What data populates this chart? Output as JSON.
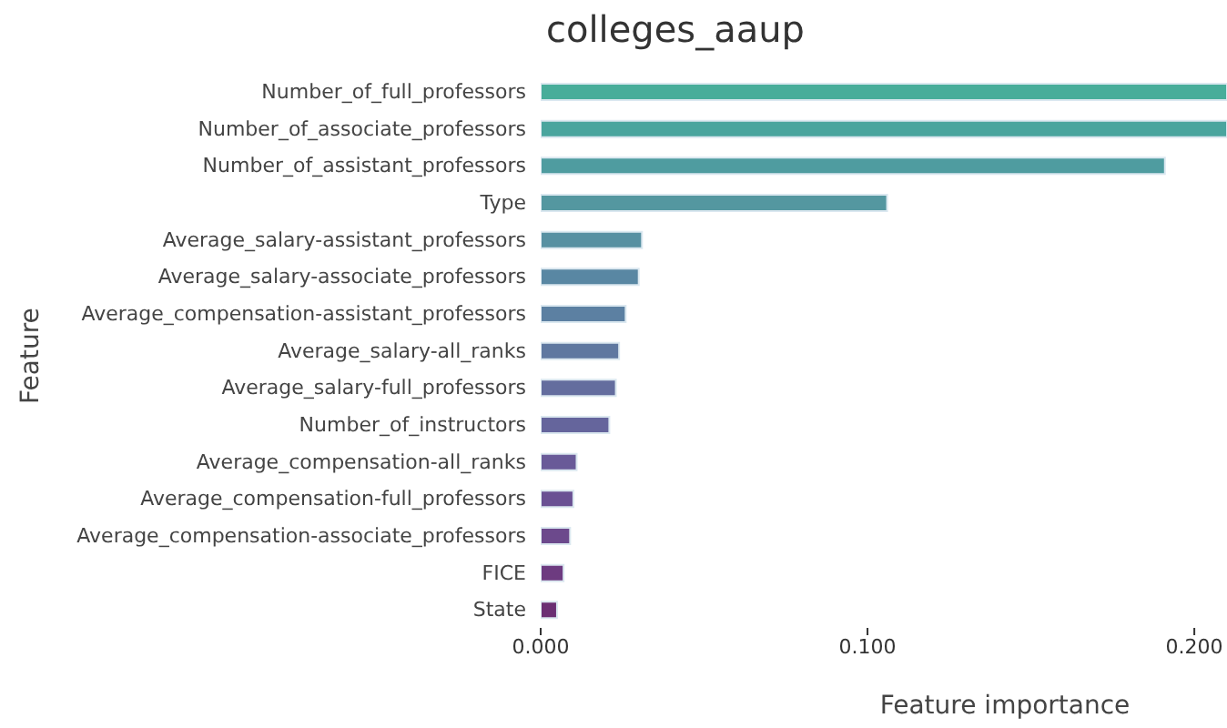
{
  "chart_data": {
    "type": "bar",
    "orientation": "horizontal",
    "title": "colleges_aaup",
    "xlabel": "Feature importance",
    "ylabel": "Feature",
    "categories": [
      "Number_of_full_professors",
      "Number_of_associate_professors",
      "Number_of_assistant_professors",
      "Type",
      "Average_salary-assistant_professors",
      "Average_salary-associate_professors",
      "Average_compensation-assistant_professors",
      "Average_salary-all_ranks",
      "Average_salary-full_professors",
      "Number_of_instructors",
      "Average_compensation-all_ranks",
      "Average_compensation-full_professors",
      "Average_compensation-associate_professors",
      "FICE",
      "State"
    ],
    "values": [
      0.21,
      0.21,
      0.191,
      0.106,
      0.031,
      0.03,
      0.026,
      0.024,
      0.023,
      0.021,
      0.011,
      0.01,
      0.009,
      0.007,
      0.005
    ],
    "colors": [
      "#48ad9a",
      "#4aa59e",
      "#4f9ca0",
      "#5497a0",
      "#5790a2",
      "#5987a3",
      "#5c80a2",
      "#5f78a0",
      "#646d9e",
      "#65659c",
      "#695a98",
      "#6a5193",
      "#6c498c",
      "#6d3b80",
      "#6b2f73"
    ],
    "xlim": [
      0,
      0.21
    ],
    "xticks": [
      {
        "value": 0,
        "label": "0.000"
      },
      {
        "value": 0.1,
        "label": "0.100"
      },
      {
        "value": 0.2,
        "label": "0.200"
      }
    ],
    "grid": false,
    "legend": false
  }
}
